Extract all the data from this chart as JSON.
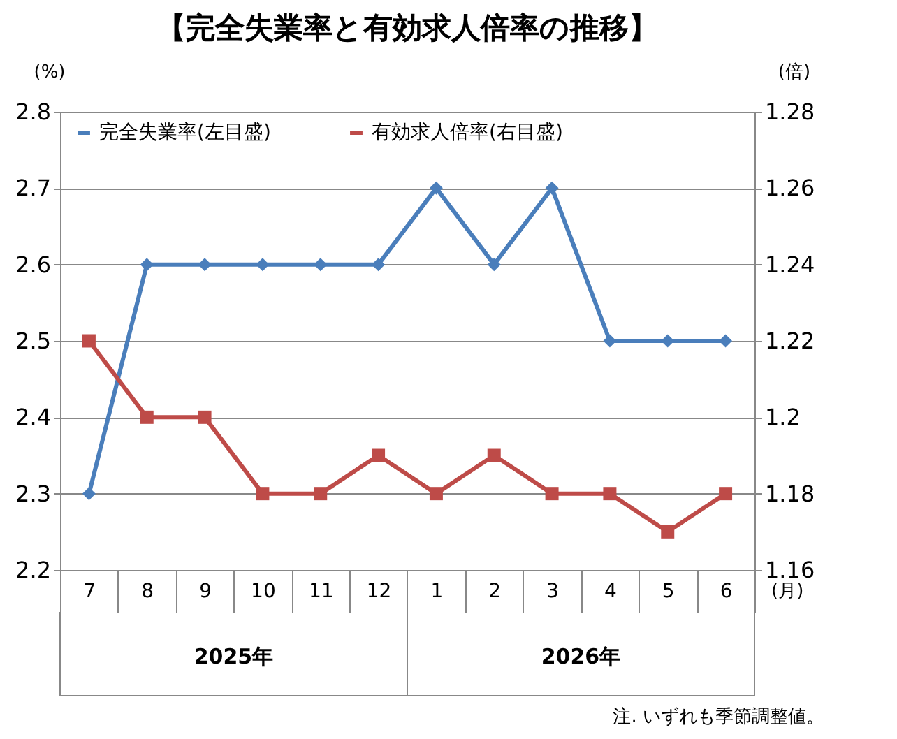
{
  "chart_data": {
    "type": "line",
    "title": "【完全失業率と有効求人倍率の推移】",
    "ylabel": "(%)",
    "y2label": "(倍)",
    "xlabel": "(月)",
    "categories": [
      "7",
      "8",
      "9",
      "10",
      "11",
      "12",
      "1",
      "2",
      "3",
      "4",
      "5",
      "6"
    ],
    "series": [
      {
        "name": "完全失業率(左目盛)",
        "color": "#4a7ebb",
        "marker": "diamond",
        "values": [
          2.3,
          2.6,
          2.6,
          2.6,
          2.6,
          2.6,
          2.7,
          2.6,
          2.7,
          2.5,
          2.5,
          2.5
        ]
      },
      {
        "name": "有効求人倍率(右目盛)",
        "color": "#be4b48",
        "marker": "square",
        "axis": "y2",
        "values": [
          1.22,
          1.2,
          1.2,
          1.18,
          1.18,
          1.19,
          1.18,
          1.19,
          1.18,
          1.18,
          1.17,
          1.18
        ]
      }
    ],
    "ylim": [
      2.2,
      2.8
    ],
    "yticks": [
      2.2,
      2.3,
      2.4,
      2.5,
      2.6,
      2.7,
      2.8
    ],
    "y2lim": [
      1.16,
      1.28
    ],
    "y2ticks": [
      1.16,
      1.18,
      1.2,
      1.22,
      1.24,
      1.26,
      1.28
    ],
    "grid": "y",
    "legend": "top",
    "annotations": [
      "2025年",
      "2026年",
      "注. いずれも季節調整値。"
    ]
  }
}
